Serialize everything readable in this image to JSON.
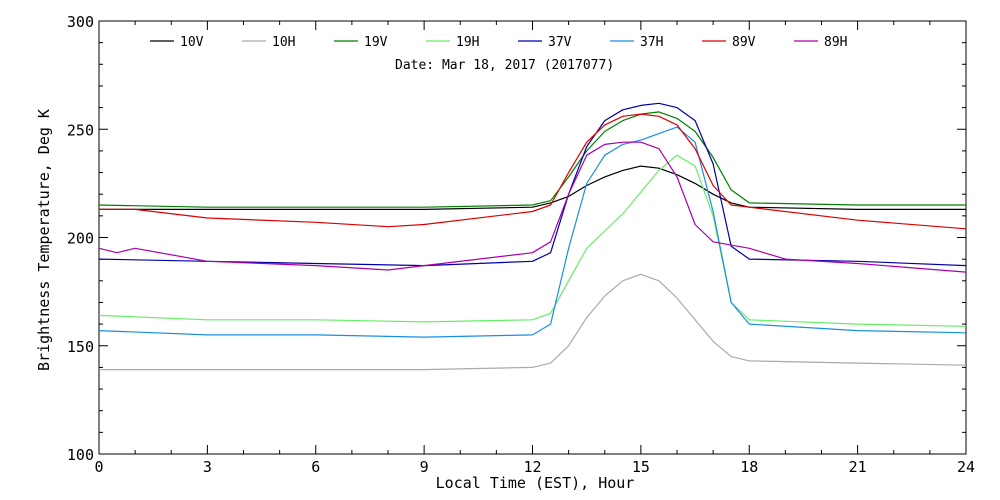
{
  "chart_data": {
    "type": "line",
    "title": "",
    "subtitle": "Date: Mar 18, 2017 (2017077)",
    "xlabel": "Local Time (EST), Hour",
    "ylabel": "Brightness Temperature, Deg K",
    "xlim": [
      0,
      24
    ],
    "ylim": [
      100,
      300
    ],
    "x_ticks": [
      "0",
      "3",
      "6",
      "9",
      "12",
      "15",
      "18",
      "21",
      "24"
    ],
    "y_ticks": [
      "100",
      "150",
      "200",
      "250",
      "300"
    ],
    "grid": false,
    "legend_position": "top",
    "series": [
      {
        "name": "10V",
        "color": "#000000",
        "points": [
          [
            0,
            213
          ],
          [
            3,
            213
          ],
          [
            6,
            213
          ],
          [
            9,
            213
          ],
          [
            12,
            214
          ],
          [
            12.5,
            216
          ],
          [
            13,
            219
          ],
          [
            13.5,
            224
          ],
          [
            14,
            228
          ],
          [
            14.5,
            231
          ],
          [
            15,
            233
          ],
          [
            15.5,
            232
          ],
          [
            16,
            229
          ],
          [
            16.5,
            225
          ],
          [
            17,
            220
          ],
          [
            17.5,
            216
          ],
          [
            18,
            214
          ],
          [
            21,
            213
          ],
          [
            24,
            213
          ]
        ]
      },
      {
        "name": "10H",
        "color": "#aaaaaa",
        "points": [
          [
            0,
            139
          ],
          [
            3,
            139
          ],
          [
            6,
            139
          ],
          [
            9,
            139
          ],
          [
            12,
            140
          ],
          [
            12.5,
            142
          ],
          [
            13,
            150
          ],
          [
            13.5,
            163
          ],
          [
            14,
            173
          ],
          [
            14.5,
            180
          ],
          [
            15,
            183
          ],
          [
            15.5,
            180
          ],
          [
            16,
            172
          ],
          [
            16.5,
            162
          ],
          [
            17,
            152
          ],
          [
            17.5,
            145
          ],
          [
            18,
            143
          ],
          [
            21,
            142
          ],
          [
            24,
            141
          ]
        ]
      },
      {
        "name": "19V",
        "color": "#008000",
        "points": [
          [
            0,
            215
          ],
          [
            3,
            214
          ],
          [
            6,
            214
          ],
          [
            9,
            214
          ],
          [
            12,
            215
          ],
          [
            12.5,
            217
          ],
          [
            13,
            228
          ],
          [
            13.5,
            240
          ],
          [
            14,
            249
          ],
          [
            14.5,
            254
          ],
          [
            15,
            257
          ],
          [
            15.5,
            258
          ],
          [
            16,
            255
          ],
          [
            16.5,
            249
          ],
          [
            17,
            237
          ],
          [
            17.5,
            222
          ],
          [
            18,
            216
          ],
          [
            21,
            215
          ],
          [
            24,
            215
          ]
        ]
      },
      {
        "name": "19H",
        "color": "#66ee66",
        "points": [
          [
            0,
            164
          ],
          [
            3,
            162
          ],
          [
            6,
            162
          ],
          [
            9,
            161
          ],
          [
            12,
            162
          ],
          [
            12.5,
            165
          ],
          [
            13,
            180
          ],
          [
            13.5,
            195
          ],
          [
            14,
            203
          ],
          [
            14.5,
            211
          ],
          [
            15,
            221
          ],
          [
            15.5,
            231
          ],
          [
            16,
            238
          ],
          [
            16.5,
            233
          ],
          [
            17,
            210
          ],
          [
            17.5,
            170
          ],
          [
            18,
            162
          ],
          [
            21,
            160
          ],
          [
            24,
            159
          ]
        ]
      },
      {
        "name": "37V",
        "color": "#0000aa",
        "points": [
          [
            0,
            190
          ],
          [
            3,
            189
          ],
          [
            6,
            188
          ],
          [
            9,
            187
          ],
          [
            12,
            189
          ],
          [
            12.5,
            193
          ],
          [
            13,
            220
          ],
          [
            13.5,
            242
          ],
          [
            14,
            254
          ],
          [
            14.5,
            259
          ],
          [
            15,
            261
          ],
          [
            15.5,
            262
          ],
          [
            16,
            260
          ],
          [
            16.5,
            254
          ],
          [
            17,
            234
          ],
          [
            17.5,
            196
          ],
          [
            18,
            190
          ],
          [
            21,
            189
          ],
          [
            24,
            187
          ]
        ]
      },
      {
        "name": "37H",
        "color": "#1a8fe0",
        "points": [
          [
            0,
            157
          ],
          [
            3,
            155
          ],
          [
            6,
            155
          ],
          [
            9,
            154
          ],
          [
            12,
            155
          ],
          [
            12.5,
            160
          ],
          [
            13,
            195
          ],
          [
            13.5,
            225
          ],
          [
            14,
            238
          ],
          [
            14.5,
            243
          ],
          [
            15,
            245
          ],
          [
            15.5,
            248
          ],
          [
            16,
            251
          ],
          [
            16.5,
            244
          ],
          [
            17,
            212
          ],
          [
            17.5,
            170
          ],
          [
            18,
            160
          ],
          [
            21,
            157
          ],
          [
            24,
            156
          ]
        ]
      },
      {
        "name": "89V",
        "color": "#dd0000",
        "points": [
          [
            0,
            213
          ],
          [
            1,
            213
          ],
          [
            3,
            209
          ],
          [
            6,
            207
          ],
          [
            8,
            205
          ],
          [
            9,
            206
          ],
          [
            12,
            212
          ],
          [
            12.5,
            215
          ],
          [
            13,
            230
          ],
          [
            13.5,
            244
          ],
          [
            14,
            252
          ],
          [
            14.5,
            256
          ],
          [
            15,
            257
          ],
          [
            15.5,
            256
          ],
          [
            16,
            252
          ],
          [
            16.5,
            241
          ],
          [
            17,
            224
          ],
          [
            17.5,
            215
          ],
          [
            18,
            214
          ],
          [
            21,
            208
          ],
          [
            24,
            204
          ]
        ]
      },
      {
        "name": "89H",
        "color": "#aa00aa",
        "points": [
          [
            0,
            195
          ],
          [
            0.5,
            193
          ],
          [
            1,
            195
          ],
          [
            3,
            189
          ],
          [
            6,
            187
          ],
          [
            8,
            185
          ],
          [
            9,
            187
          ],
          [
            12,
            193
          ],
          [
            12.5,
            198
          ],
          [
            13,
            220
          ],
          [
            13.5,
            238
          ],
          [
            14,
            243
          ],
          [
            14.5,
            244
          ],
          [
            15,
            244
          ],
          [
            15.5,
            241
          ],
          [
            16,
            228
          ],
          [
            16.5,
            206
          ],
          [
            17,
            198
          ],
          [
            18,
            195
          ],
          [
            19,
            190
          ],
          [
            21,
            188
          ],
          [
            24,
            184
          ]
        ]
      }
    ]
  }
}
